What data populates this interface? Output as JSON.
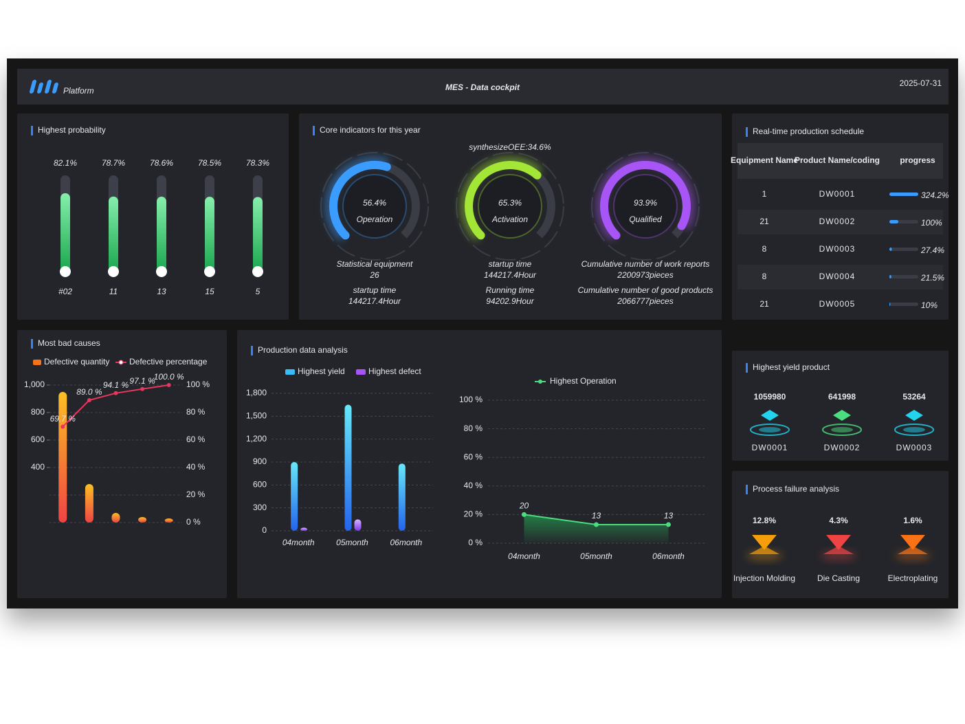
{
  "header": {
    "logo": "Platform",
    "title": "MES - Data cockpit",
    "date": "2025-07-31"
  },
  "highest_probability": {
    "title": "Highest probability",
    "chart_data": {
      "type": "bar",
      "categories": [
        "#02",
        "11",
        "13",
        "15",
        "5"
      ],
      "values": [
        82.1,
        78.7,
        78.6,
        78.5,
        78.3
      ],
      "value_labels": [
        "82.1%",
        "78.7%",
        "78.6%",
        "78.5%",
        "78.3%"
      ],
      "ylim": [
        0,
        100
      ],
      "color": "#4ade80"
    }
  },
  "core_indicators": {
    "title": "Core indicators for this year",
    "oee": "synthesizeOEE:34.6%",
    "range": [
      0,
      100
    ],
    "gauges": [
      {
        "value": 56.4,
        "value_label": "56.4%",
        "label": "Operation",
        "color": "#3b9cff",
        "stats": [
          {
            "label": "Statistical equipment",
            "value": 26
          },
          {
            "label": "startup time",
            "value": "144217.4Hour"
          }
        ]
      },
      {
        "value": 65.3,
        "value_label": "65.3%",
        "label": "Activation",
        "color": "#a3e635",
        "stats": [
          {
            "label": "startup time",
            "value": "144217.4Hour"
          },
          {
            "label": "Running time",
            "value": "94202.9Hour"
          }
        ]
      },
      {
        "value": 93.9,
        "value_label": "93.9%",
        "label": "Qualified",
        "color": "#a855f7",
        "stats": [
          {
            "label": "Cumulative number of work reports",
            "value": "2200973pieces"
          },
          {
            "label": "Cumulative number of good products",
            "value": "2066777pieces"
          }
        ]
      }
    ]
  },
  "schedule": {
    "title": "Real-time production schedule",
    "columns": [
      "Equipment Name",
      "Product Name/coding",
      "progress"
    ],
    "rows": [
      {
        "equipment": 1,
        "product": "DW0001",
        "progress": 324.2,
        "progress_label": "324.2%"
      },
      {
        "equipment": 21,
        "product": "DW0002",
        "progress": 100,
        "progress_label": "100%"
      },
      {
        "equipment": 8,
        "product": "DW0003",
        "progress": 27.4,
        "progress_label": "27.4%"
      },
      {
        "equipment": 8,
        "product": "DW0004",
        "progress": 21.5,
        "progress_label": "21.5%"
      },
      {
        "equipment": 21,
        "product": "DW0005",
        "progress": 10,
        "progress_label": "10%"
      }
    ]
  },
  "bad_causes": {
    "title": "Most bad causes",
    "chart_data": {
      "type": "bar-line",
      "categories": [
        null,
        null,
        null,
        null,
        null
      ],
      "series": [
        {
          "name": "Defective quantity",
          "color": "#f97316",
          "values": [
            950,
            280,
            70,
            40,
            30
          ]
        },
        {
          "name": "Defective percentage",
          "color": "#e8365d",
          "axis": "y2",
          "values": [
            69.7,
            89.0,
            94.1,
            97.1,
            100.0
          ],
          "value_labels": [
            "69.7 %",
            "89.0 %",
            "94.1 %",
            "97.1 %",
            "100.0 %"
          ]
        }
      ],
      "ylim": [
        0,
        1000
      ],
      "yticks": [
        400,
        600,
        800,
        {
          "value": 1000,
          "label": "1,000"
        }
      ],
      "y2lim": [
        0,
        100
      ],
      "y2ticks": [
        {
          "value": 0,
          "label": "0 %"
        },
        {
          "value": 20,
          "label": "20 %"
        },
        {
          "value": 40,
          "label": "40 %"
        },
        {
          "value": 60,
          "label": "60 %"
        },
        {
          "value": 80,
          "label": "80 %"
        },
        {
          "value": 100,
          "label": "100 %"
        }
      ]
    }
  },
  "production": {
    "title": "Production data analysis",
    "charts": [
      {
        "type": "bar",
        "categories": [
          "04month",
          "05month",
          "06month"
        ],
        "series": [
          {
            "name": "Highest yield",
            "color": "#38bdf8",
            "values": [
              900,
              1650,
              880
            ]
          },
          {
            "name": "Highest defect",
            "color": "#a855f7",
            "values": [
              40,
              150,
              null
            ]
          }
        ],
        "ylim": [
          0,
          1800
        ],
        "yticks": [
          0,
          300,
          600,
          900,
          {
            "value": 1200,
            "label": "1,200"
          },
          {
            "value": 1500,
            "label": "1,500"
          },
          {
            "value": 1800,
            "label": "1,800"
          }
        ],
        "grid": true
      },
      {
        "type": "area",
        "categories": [
          "04month",
          "05month",
          "06month"
        ],
        "series": [
          {
            "name": "Highest Operation",
            "color": "#4ade80",
            "values": [
              20,
              13,
              13
            ]
          }
        ],
        "ylim": [
          0,
          100
        ],
        "yticks": [
          {
            "value": 0,
            "label": "0 %"
          },
          {
            "value": 20,
            "label": "20 %"
          },
          {
            "value": 40,
            "label": "40 %"
          },
          {
            "value": 60,
            "label": "60 %"
          },
          {
            "value": 80,
            "label": "80 %"
          },
          {
            "value": 100,
            "label": "100 %"
          }
        ],
        "grid": true
      }
    ]
  },
  "yield_products": {
    "title": "Highest yield product",
    "items": [
      {
        "value": 1059980,
        "name": "DW0001"
      },
      {
        "value": 641998,
        "name": "DW0002"
      },
      {
        "value": 53264,
        "name": "DW0003"
      }
    ]
  },
  "process_failure": {
    "title": "Process failure analysis",
    "items": [
      {
        "value": "12.8%",
        "name": "Injection Molding"
      },
      {
        "value": "4.3%",
        "name": "Die Casting"
      },
      {
        "value": "1.6%",
        "name": "Electroplating"
      }
    ]
  }
}
